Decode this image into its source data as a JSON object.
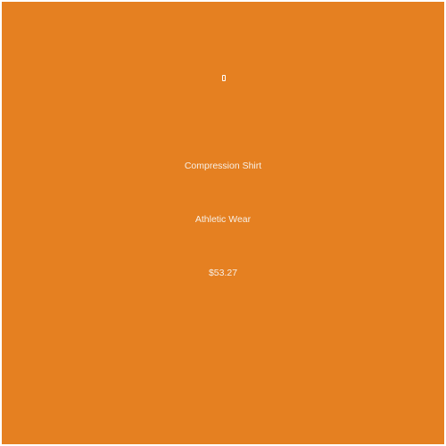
{
  "product": {
    "icon": "missing-glyph-icon",
    "name": "Compression Shirt",
    "category": "Athletic Wear",
    "price": "$53.27"
  },
  "colors": {
    "card_background": "#e58021",
    "text": "#ffffff"
  }
}
